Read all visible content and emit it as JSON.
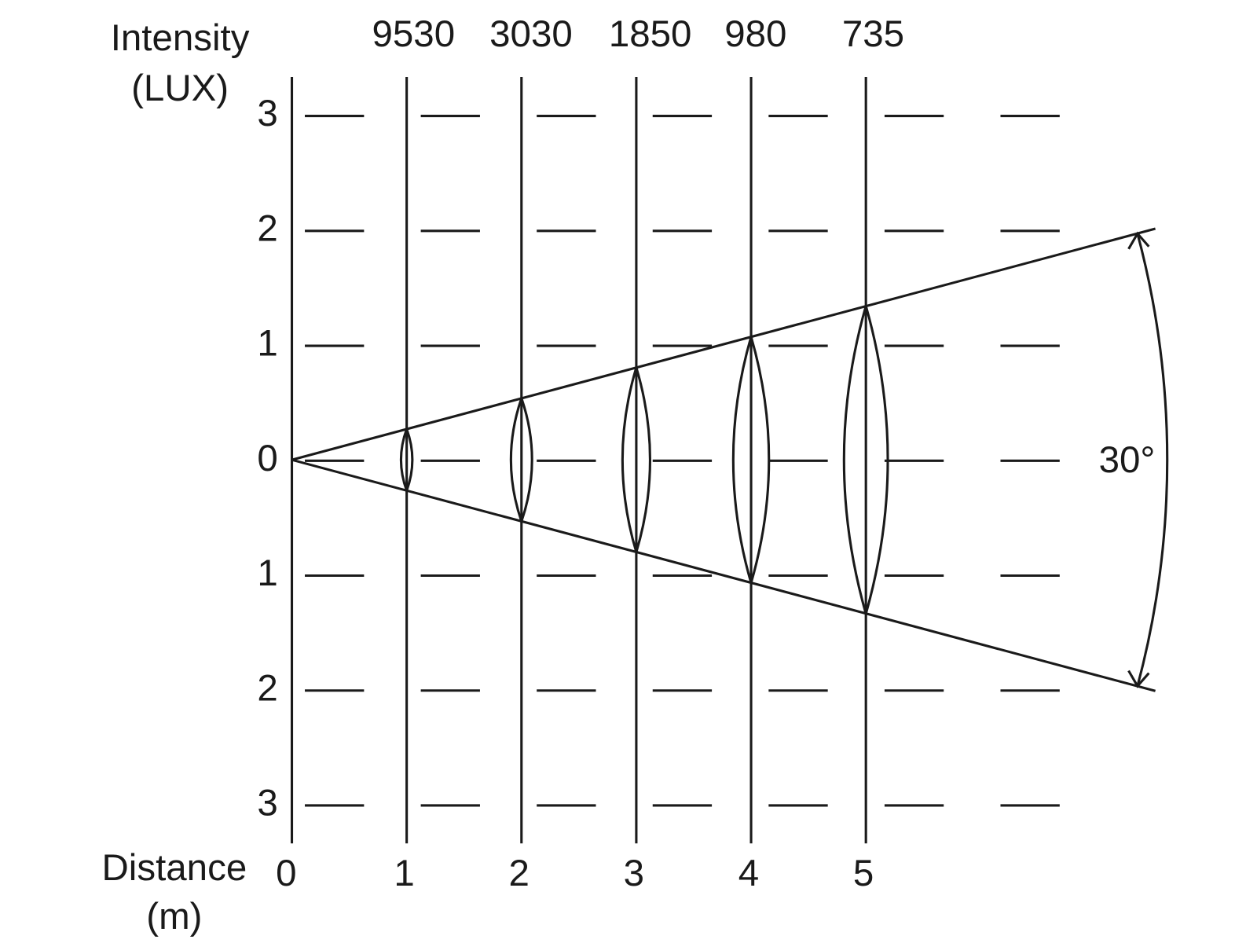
{
  "intensity_label": {
    "lines": [
      "Intensity",
      "(LUX)"
    ]
  },
  "distance_label": {
    "lines": [
      "Distance",
      "(m)"
    ]
  },
  "intensities": [
    9530,
    3030,
    1850,
    980,
    735
  ],
  "distances": [
    0,
    1,
    2,
    3,
    4,
    5
  ],
  "offsets": [
    3,
    2,
    1,
    0,
    1,
    2,
    3
  ],
  "beam_angle": "30°"
}
